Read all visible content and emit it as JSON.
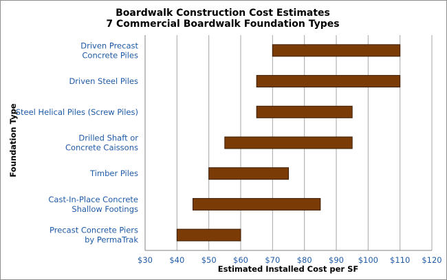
{
  "chart_data": {
    "type": "bar",
    "orientation": "horizontal",
    "title": "Boardwalk Construction Cost Estimates",
    "subtitle": "7 Commercial Boardwalk Foundation Types",
    "xlabel": "Estimated Installed Cost per SF",
    "ylabel": "Foundation Type",
    "xlim": [
      30,
      120
    ],
    "xticks": [
      "$30",
      "$40",
      "$50",
      "$60",
      "$70",
      "$80",
      "$90",
      "$100",
      "$110",
      "$120"
    ],
    "grid": "vertical",
    "categories": [
      [
        "Driven Precast",
        "Concrete Piles"
      ],
      [
        "Driven Steel Piles"
      ],
      [
        "Steel Helical Piles (Screw Piles)"
      ],
      [
        "Drilled Shaft or",
        "Concrete Caissons"
      ],
      [
        "Timber Piles"
      ],
      [
        "Cast-In-Place Concrete",
        "Shallow Footings"
      ],
      [
        "Precast Concrete Piers",
        "by PermaTrak"
      ]
    ],
    "ranges": [
      [
        70,
        110
      ],
      [
        65,
        110
      ],
      [
        65,
        95
      ],
      [
        55,
        95
      ],
      [
        50,
        75
      ],
      [
        45,
        85
      ],
      [
        40,
        60
      ]
    ],
    "bar_color": "#7a3b07"
  }
}
